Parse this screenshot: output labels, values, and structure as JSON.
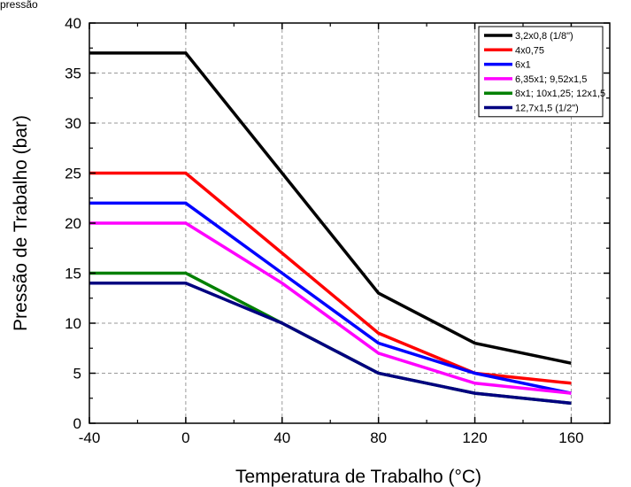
{
  "header_fragment": "pressão",
  "chart_data": {
    "type": "line",
    "xlabel": "Temperatura de Trabalho (°C)",
    "ylabel": "Pressão de Trabalho (bar)",
    "x": [
      -40,
      0,
      40,
      80,
      120,
      160
    ],
    "xlim": [
      -40,
      176
    ],
    "ylim": [
      0,
      40
    ],
    "x_ticks": [
      -40,
      0,
      40,
      80,
      120,
      160
    ],
    "x_tick_labels": [
      "-40",
      "0",
      "40",
      "80",
      "120",
      "160"
    ],
    "y_ticks": [
      0,
      5,
      10,
      15,
      20,
      25,
      30,
      35,
      40
    ],
    "y_tick_labels": [
      "0",
      "5",
      "10",
      "15",
      "20",
      "25",
      "30",
      "35",
      "40"
    ],
    "grid": true,
    "legend_position": "top-right",
    "series": [
      {
        "name": "3,2x0,8 (1/8\")",
        "color": "#000000",
        "values": [
          37,
          37,
          25,
          13,
          8,
          6
        ]
      },
      {
        "name": "4x0,75",
        "color": "#ff0000",
        "values": [
          25,
          25,
          17,
          9,
          5,
          4
        ]
      },
      {
        "name": "6x1",
        "color": "#0000ff",
        "values": [
          22,
          22,
          15,
          8,
          5,
          3
        ]
      },
      {
        "name": "6,35x1; 9,52x1,5",
        "color": "#ff00ff",
        "values": [
          20,
          20,
          14,
          7,
          4,
          3
        ]
      },
      {
        "name": "8x1; 10x1,25; 12x1,5",
        "color": "#008000",
        "values": [
          15,
          15,
          10,
          5,
          3,
          2
        ]
      },
      {
        "name": "12,7x1,5 (1/2\")",
        "color": "#000080",
        "values": [
          14,
          14,
          10,
          5,
          3,
          2
        ]
      }
    ]
  }
}
